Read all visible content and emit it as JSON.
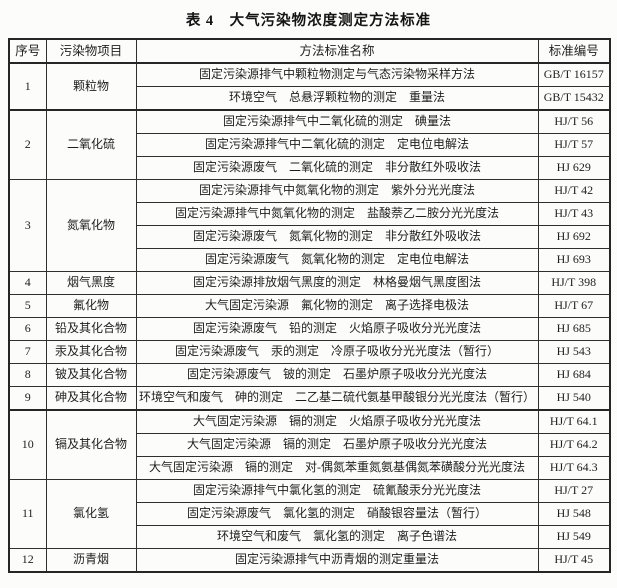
{
  "title": "表 4　大气污染物浓度测定方法标准",
  "table": {
    "headers": [
      "序号",
      "污染物项目",
      "方法标准名称",
      "标准编号"
    ],
    "groups": [
      {
        "no": "1",
        "pollutant": "颗粒物",
        "methods": [
          {
            "name": "固定污染源排气中颗粒物测定与气态污染物采样方法",
            "code": "GB/T 16157"
          },
          {
            "name": "环境空气　总悬浮颗粒物的测定　重量法",
            "code": "GB/T 15432"
          }
        ]
      },
      {
        "no": "2",
        "pollutant": "二氧化硫",
        "methods": [
          {
            "name": "固定污染源排气中二氧化硫的测定　碘量法",
            "code": "HJ/T 56"
          },
          {
            "name": "固定污染源排气中二氧化硫的测定　定电位电解法",
            "code": "HJ/T 57"
          },
          {
            "name": "固定污染源废气　二氧化硫的测定　非分散红外吸收法",
            "code": "HJ 629"
          }
        ]
      },
      {
        "no": "3",
        "pollutant": "氮氧化物",
        "methods": [
          {
            "name": "固定污染源排气中氮氧化物的测定　紫外分光光度法",
            "code": "HJ/T 42"
          },
          {
            "name": "固定污染源排气中氮氧化物的测定　盐酸萘乙二胺分光光度法",
            "code": "HJ/T 43"
          },
          {
            "name": "固定污染源废气　氮氧化物的测定　非分散红外吸收法",
            "code": "HJ 692"
          },
          {
            "name": "固定污染源废气　氮氧化物的测定　定电位电解法",
            "code": "HJ 693"
          }
        ]
      },
      {
        "no": "4",
        "pollutant": "烟气黑度",
        "methods": [
          {
            "name": "固定污染源排放烟气黑度的测定　林格曼烟气黑度图法",
            "code": "HJ/T 398"
          }
        ]
      },
      {
        "no": "5",
        "pollutant": "氟化物",
        "methods": [
          {
            "name": "大气固定污染源　氟化物的测定　离子选择电极法",
            "code": "HJ/T 67"
          }
        ]
      },
      {
        "no": "6",
        "pollutant": "铅及其化合物",
        "methods": [
          {
            "name": "固定污染源废气　铅的测定　火焰原子吸收分光光度法",
            "code": "HJ 685"
          }
        ]
      },
      {
        "no": "7",
        "pollutant": "汞及其化合物",
        "methods": [
          {
            "name": "固定污染源废气　汞的测定　冷原子吸收分光光度法（暂行）",
            "code": "HJ 543"
          }
        ]
      },
      {
        "no": "8",
        "pollutant": "铍及其化合物",
        "methods": [
          {
            "name": "固定污染源废气　铍的测定　石墨炉原子吸收分光光度法",
            "code": "HJ 684"
          }
        ]
      },
      {
        "no": "9",
        "pollutant": "砷及其化合物",
        "methods": [
          {
            "name": "环境空气和废气　砷的测定　二乙基二硫代氨基甲酸银分光光度法（暂行）",
            "code": "HJ 540"
          }
        ]
      },
      {
        "no": "10",
        "pollutant": "镉及其化合物",
        "methods": [
          {
            "name": "大气固定污染源　镉的测定　火焰原子吸收分光光度法",
            "code": "HJ/T 64.1"
          },
          {
            "name": "大气固定污染源　镉的测定　石墨炉原子吸收分光光度法",
            "code": "HJ/T 64.2"
          },
          {
            "name": "大气固定污染源　镉的测定　对-偶氮苯重氮氨基偶氮苯磺酸分光光度法",
            "code": "HJ/T 64.3"
          }
        ]
      },
      {
        "no": "11",
        "pollutant": "氯化氢",
        "methods": [
          {
            "name": "固定污染源排气中氯化氢的测定　硫氰酸汞分光光度法",
            "code": "HJ/T 27"
          },
          {
            "name": "固定污染源废气　氯化氢的测定　硝酸银容量法（暂行）",
            "code": "HJ 548"
          },
          {
            "name": "环境空气和废气　氯化氢的测定　离子色谱法",
            "code": "HJ 549"
          }
        ]
      },
      {
        "no": "12",
        "pollutant": "沥青烟",
        "methods": [
          {
            "name": "固定污染源排气中沥青烟的测定重量法",
            "code": "HJ/T 45"
          }
        ]
      }
    ]
  },
  "colors": {
    "background": "#fcfcfb",
    "border": "#2f2f2f",
    "text": "#1e1e1e"
  }
}
